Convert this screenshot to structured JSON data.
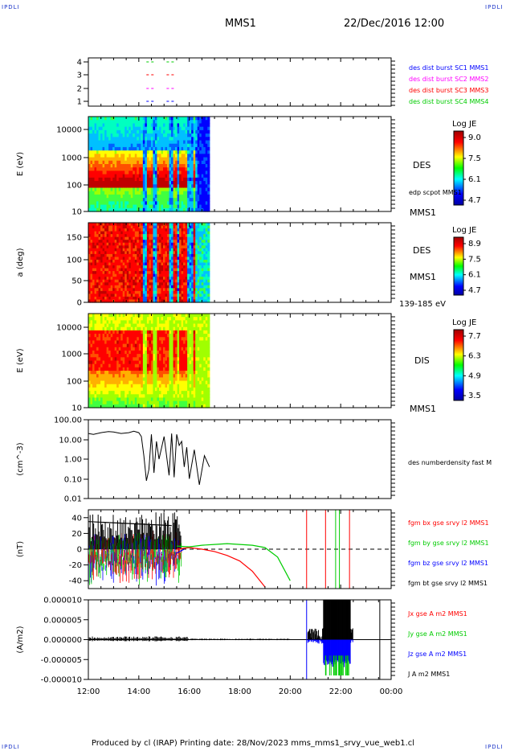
{
  "corner_labels": {
    "top_left": "IPDLI",
    "top_right": "IPDLI",
    "bottom_left": "IPDLI",
    "bottom_right": "IPDLI"
  },
  "header": {
    "spacecraft": "MMS1",
    "datetime": "22/Dec/2016 12:00"
  },
  "footer": {
    "text": "Produced by cl (IRAP)   Printing date: 28/Nov/2023   mms_mms1_srvy_vue_web1.cl"
  },
  "colors": {
    "mms1": "#0000ff",
    "mms2": "#ff00ff",
    "mms3": "#ff0000",
    "mms4": "#00cc00"
  },
  "chart_data": [
    {
      "type": "line",
      "panel": "availability",
      "yticks": [
        "4",
        "3",
        "2",
        "1"
      ],
      "legend": [
        "des dist burst SC1 MMS1",
        "des dist burst SC2 MMS2",
        "des dist burst SC3 MMS3",
        "des dist burst SC4 MMS4"
      ],
      "series": [
        {
          "sc": 4,
          "color": "#00cc00",
          "segments": [
            [
              14.3,
              14.6
            ],
            [
              15.1,
              15.4
            ]
          ]
        },
        {
          "sc": 3,
          "color": "#ff0000",
          "segments": [
            [
              14.3,
              14.6
            ],
            [
              15.1,
              15.4
            ]
          ]
        },
        {
          "sc": 2,
          "color": "#ff00ff",
          "segments": [
            [
              14.3,
              14.6
            ],
            [
              15.1,
              15.4
            ]
          ]
        },
        {
          "sc": 1,
          "color": "#0000ff",
          "segments": [
            [
              14.3,
              14.6
            ],
            [
              15.1,
              15.4
            ]
          ]
        }
      ]
    },
    {
      "type": "heatmap",
      "panel": "des_energy",
      "ylabel": "E (eV)",
      "yticks": [
        "10000",
        "1000",
        "100",
        "10"
      ],
      "label": "DES",
      "label2": "edp scpot MMS1",
      "sc_label": "MMS1",
      "cbar_title": "Log JE",
      "cbar_ticks": [
        "9.0",
        "7.5",
        "6.1",
        "4.7"
      ],
      "data_end_hour": 16.8
    },
    {
      "type": "heatmap",
      "panel": "des_pitch",
      "ylabel": "a (deg)",
      "yticks": [
        "150",
        "100",
        "50",
        "0"
      ],
      "label": "DES",
      "sc_label": "MMS1",
      "range_label": "139-185 eV",
      "cbar_title": "Log JE",
      "cbar_ticks": [
        "8.9",
        "7.5",
        "6.1",
        "4.7"
      ],
      "data_end_hour": 16.8
    },
    {
      "type": "heatmap",
      "panel": "dis_energy",
      "ylabel": "E (eV)",
      "yticks": [
        "10000",
        "1000",
        "100",
        "10"
      ],
      "label": "DIS",
      "sc_label": "MMS1",
      "cbar_title": "Log JE",
      "cbar_ticks": [
        "7.7",
        "6.3",
        "4.9",
        "3.5"
      ],
      "data_end_hour": 16.8
    },
    {
      "type": "line",
      "panel": "density",
      "ylabel": "(cm^-3)",
      "yticks": [
        "100.00",
        "10.00",
        "1.00",
        "0.10",
        "0.01"
      ],
      "legend": [
        "des numberdensity fast M"
      ],
      "ylim": [
        0.01,
        100
      ],
      "scale": "log",
      "series": [
        {
          "name": "des numberdensity fast M",
          "color": "#000000",
          "x": [
            12.0,
            12.2,
            12.5,
            12.8,
            13.0,
            13.3,
            13.6,
            13.8,
            14.0,
            14.1,
            14.2,
            14.3,
            14.4,
            14.5,
            14.6,
            14.7,
            14.8,
            15.0,
            15.2,
            15.3,
            15.4,
            15.5,
            15.6,
            15.7,
            15.8,
            15.9,
            16.0,
            16.2,
            16.4,
            16.6,
            16.8
          ],
          "y": [
            20,
            18,
            22,
            25,
            24,
            20,
            22,
            26,
            22,
            14,
            1.5,
            0.08,
            0.3,
            18,
            0.2,
            8,
            1.0,
            14,
            0.15,
            20,
            0.12,
            18,
            5,
            8,
            0.4,
            4,
            0.1,
            3,
            0.05,
            1.5,
            0.4
          ]
        }
      ]
    },
    {
      "type": "line",
      "panel": "b_field",
      "ylabel": "(nT)",
      "yticks": [
        "40",
        "20",
        "0",
        "-20",
        "-40"
      ],
      "ylim": [
        -50,
        50
      ],
      "legend": [
        "fgm bx gse srvy l2 MMS1",
        "fgm by gse srvy l2 MMS1",
        "fgm bz gse srvy l2 MMS1",
        "fgm bt gse srvy l2 MMS1"
      ],
      "series": [
        {
          "name": "fgm bx gse srvy l2 MMS1",
          "color": "#ff0000",
          "x": [
            15.5,
            16.0,
            16.5,
            17.0,
            17.5,
            18.0,
            18.5,
            19.0
          ],
          "y": [
            0,
            2,
            0,
            -3,
            -8,
            -15,
            -28,
            -48
          ]
        },
        {
          "name": "fgm by gse srvy l2 MMS1",
          "color": "#00cc00",
          "x": [
            15.5,
            16.0,
            16.5,
            17.0,
            17.5,
            18.0,
            18.5,
            19.0,
            19.5,
            20.0
          ],
          "y": [
            4,
            3,
            5,
            6,
            7,
            6,
            5,
            2,
            -10,
            -40
          ]
        },
        {
          "name": "fgm bz gse srvy l2 MMS1",
          "color": "#0000ff",
          "x": [
            15.5,
            15.8
          ],
          "y": [
            -5,
            0
          ]
        },
        {
          "name": "fgm bt gse srvy l2 MMS1",
          "color": "#000000",
          "x": [
            12.0,
            15.3
          ],
          "y": [
            35,
            30
          ]
        }
      ],
      "spikes": [
        {
          "x": 20.65,
          "color": "#ff0000"
        },
        {
          "x": 21.4,
          "color": "#ff0000"
        },
        {
          "x": 21.8,
          "color": "#00cc00"
        },
        {
          "x": 21.95,
          "color": "#00cc00"
        },
        {
          "x": 22.35,
          "color": "#ff0000"
        }
      ]
    },
    {
      "type": "line",
      "panel": "current",
      "ylabel": "(A/m2)",
      "yticks": [
        "0.000010",
        "0.000005",
        "0.000000",
        "-0.000005",
        "-0.000010"
      ],
      "ylim": [
        -1e-05,
        1e-05
      ],
      "legend": [
        "Jx gse A m2 MMS1",
        "Jy gse A m2 MMS1",
        "Jz gse A m2 MMS1",
        "J A m2 MMS1"
      ],
      "series": [
        {
          "name": "Jx gse A m2 MMS1",
          "color": "#ff0000"
        },
        {
          "name": "Jy gse A m2 MMS1",
          "color": "#00cc00"
        },
        {
          "name": "Jz gse A m2 MMS1",
          "color": "#0000ff"
        },
        {
          "name": "J A m2 MMS1",
          "color": "#000000"
        }
      ],
      "xticks": [
        "12:00",
        "14:00",
        "16:00",
        "18:00",
        "20:00",
        "22:00",
        "00:00"
      ],
      "xlim": [
        12,
        24
      ]
    }
  ]
}
